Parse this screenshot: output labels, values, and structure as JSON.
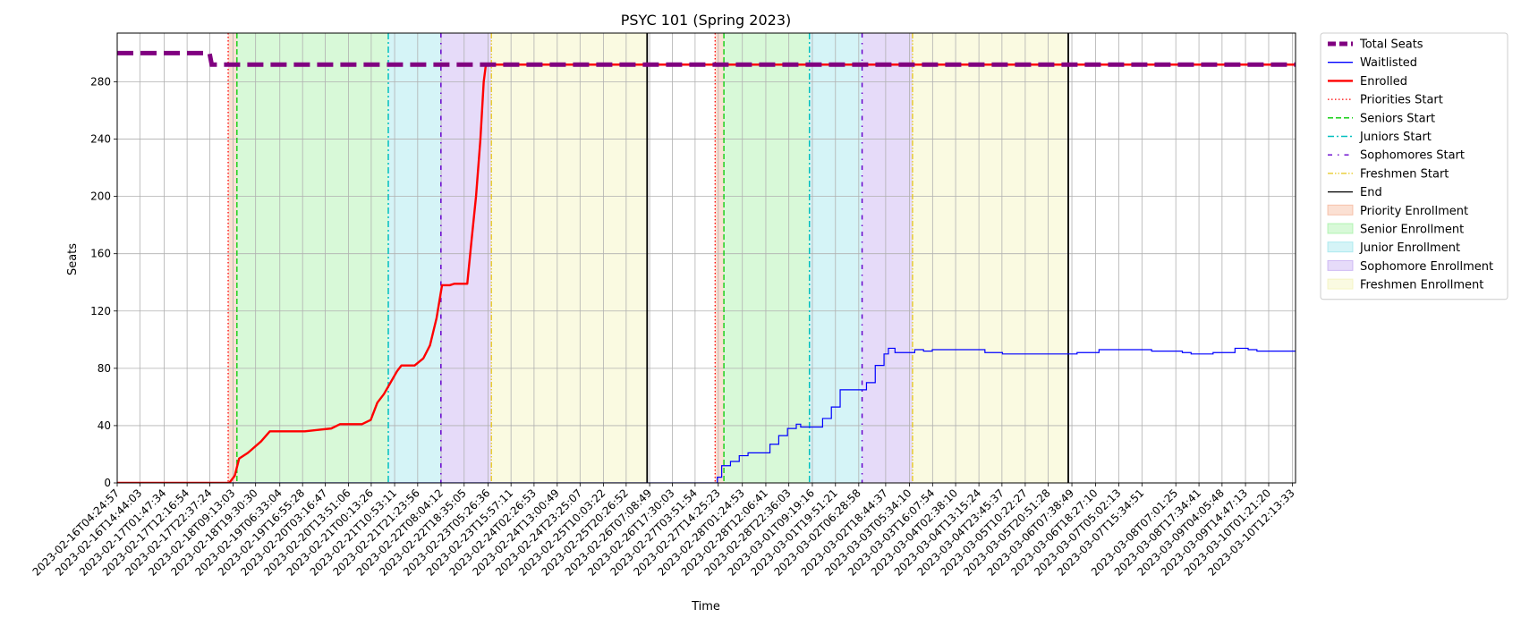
{
  "chart_data": {
    "type": "line",
    "title": "PSYC 101 (Spring 2023)",
    "xlabel": "Time",
    "ylabel": "Seats",
    "x_start": "2023-02-16T04:24:57",
    "x_end": "2023-03-10T13:36:00",
    "ylim": [
      0,
      314
    ],
    "yticks": [
      0,
      40,
      80,
      120,
      160,
      200,
      240,
      280
    ],
    "grid": true,
    "legend_position": "outside-right",
    "xtick_labels": [
      "2023-02-16T04:24:57",
      "2023-02-16T14:44:03",
      "2023-02-17T01:47:34",
      "2023-02-17T12:16:54",
      "2023-02-17T22:37:24",
      "2023-02-18T09:13:03",
      "2023-02-18T19:30:30",
      "2023-02-19T06:33:04",
      "2023-02-19T16:55:28",
      "2023-02-20T03:16:47",
      "2023-02-20T13:51:06",
      "2023-02-21T00:13:26",
      "2023-02-21T10:53:11",
      "2023-02-21T21:23:56",
      "2023-02-22T08:04:12",
      "2023-02-22T18:35:05",
      "2023-02-23T05:26:36",
      "2023-02-23T15:57:11",
      "2023-02-24T02:26:53",
      "2023-02-24T13:00:49",
      "2023-02-24T23:25:07",
      "2023-02-25T10:03:22",
      "2023-02-25T20:26:52",
      "2023-02-26T07:08:49",
      "2023-02-26T17:30:03",
      "2023-02-27T03:51:54",
      "2023-02-27T14:25:23",
      "2023-02-28T01:24:53",
      "2023-02-28T12:06:41",
      "2023-02-28T22:36:03",
      "2023-03-01T09:19:16",
      "2023-03-01T19:51:21",
      "2023-03-02T06:28:58",
      "2023-03-02T18:44:37",
      "2023-03-03T05:34:10",
      "2023-03-03T16:07:54",
      "2023-03-04T02:38:10",
      "2023-03-04T13:15:24",
      "2023-03-04T23:45:37",
      "2023-03-05T10:22:27",
      "2023-03-05T20:51:28",
      "2023-03-06T07:38:49",
      "2023-03-06T18:27:10",
      "2023-03-07T05:02:13",
      "2023-03-07T15:34:51",
      "2023-03-08T07:01:25",
      "2023-03-08T17:34:41",
      "2023-03-09T04:05:48",
      "2023-03-09T14:47:13",
      "2023-03-10T01:21:20",
      "2023-03-10T12:13:33"
    ],
    "colors": {
      "total_seats": "#800080",
      "waitlisted": "#0000ff",
      "enrolled": "#ff0000",
      "priority_line": "#ff0000",
      "seniors_line": "#00cc00",
      "juniors_line": "#00bfbf",
      "sophomores_line": "#6600cc",
      "freshmen_line": "#e6c619",
      "end_line": "#000000",
      "priority_fill": "#f4a582",
      "senior_fill": "#90ee90",
      "junior_fill": "#87dfe8",
      "sophomore_fill": "#b799ee",
      "freshmen_fill": "#f0f0a8"
    },
    "legend": [
      {
        "key": "total_seats",
        "label": "Total Seats",
        "style": "thick-dashed"
      },
      {
        "key": "waitlisted",
        "label": "Waitlisted",
        "style": "line"
      },
      {
        "key": "enrolled",
        "label": "Enrolled",
        "style": "thick-line"
      },
      {
        "key": "priority_line",
        "label": "Priorities Start",
        "style": "dotted"
      },
      {
        "key": "seniors_line",
        "label": "Seniors Start",
        "style": "dashed"
      },
      {
        "key": "juniors_line",
        "label": "Juniors Start",
        "style": "dashdot"
      },
      {
        "key": "sophomores_line",
        "label": "Sophomores Start",
        "style": "loose-dashdot"
      },
      {
        "key": "freshmen_line",
        "label": "Freshmen Start",
        "style": "dashdotdot"
      },
      {
        "key": "end_line",
        "label": "End",
        "style": "line"
      },
      {
        "key": "priority_fill",
        "label": "Priority Enrollment",
        "style": "patch"
      },
      {
        "key": "senior_fill",
        "label": "Senior Enrollment",
        "style": "patch"
      },
      {
        "key": "junior_fill",
        "label": "Junior Enrollment",
        "style": "patch"
      },
      {
        "key": "sophomore_fill",
        "label": "Sophomore Enrollment",
        "style": "patch"
      },
      {
        "key": "freshmen_fill",
        "label": "Freshmen Enrollment",
        "style": "patch"
      }
    ],
    "periods": [
      {
        "priorities_start": "2023-02-18T07:00:00",
        "seniors_start": "2023-02-18T11:00:00",
        "juniors_start": "2023-02-21T08:00:00",
        "sophomores_start": "2023-02-22T08:00:00",
        "freshmen_start": "2023-02-23T07:00:00",
        "end": "2023-02-26T06:00:00"
      },
      {
        "priorities_start": "2023-02-27T13:00:00",
        "seniors_start": "2023-02-27T17:00:00",
        "juniors_start": "2023-03-01T08:00:00",
        "sophomores_start": "2023-03-02T08:00:00",
        "freshmen_start": "2023-03-03T07:00:00",
        "end": "2023-03-06T06:00:00"
      }
    ],
    "series": [
      {
        "key": "total_seats",
        "name": "Total Seats",
        "step": true,
        "points": [
          [
            "2023-02-16T04:24:57",
            300
          ],
          [
            "2023-02-17T22:30:00",
            300
          ],
          [
            "2023-02-17T23:30:00",
            292
          ],
          [
            "2023-03-10T13:36:00",
            292
          ]
        ]
      },
      {
        "key": "enrolled",
        "name": "Enrolled",
        "step": false,
        "points": [
          [
            "2023-02-16T04:24:57",
            0
          ],
          [
            "2023-02-18T07:30:00",
            0
          ],
          [
            "2023-02-18T10:00:00",
            5
          ],
          [
            "2023-02-18T12:00:00",
            17
          ],
          [
            "2023-02-18T16:00:00",
            21
          ],
          [
            "2023-02-18T22:00:00",
            29
          ],
          [
            "2023-02-19T02:00:00",
            36
          ],
          [
            "2023-02-19T18:00:00",
            36
          ],
          [
            "2023-02-20T00:00:00",
            37
          ],
          [
            "2023-02-20T06:00:00",
            38
          ],
          [
            "2023-02-20T10:00:00",
            41
          ],
          [
            "2023-02-20T20:00:00",
            41
          ],
          [
            "2023-02-21T00:00:00",
            44
          ],
          [
            "2023-02-21T03:00:00",
            56
          ],
          [
            "2023-02-21T06:00:00",
            62
          ],
          [
            "2023-02-21T09:00:00",
            70
          ],
          [
            "2023-02-21T12:00:00",
            78
          ],
          [
            "2023-02-21T14:00:00",
            82
          ],
          [
            "2023-02-21T20:00:00",
            82
          ],
          [
            "2023-02-22T00:00:00",
            87
          ],
          [
            "2023-02-22T03:00:00",
            96
          ],
          [
            "2023-02-22T06:00:00",
            115
          ],
          [
            "2023-02-22T08:30:00",
            138
          ],
          [
            "2023-02-22T12:00:00",
            138
          ],
          [
            "2023-02-22T14:00:00",
            139
          ],
          [
            "2023-02-22T20:00:00",
            139
          ],
          [
            "2023-02-22T22:00:00",
            170
          ],
          [
            "2023-02-23T00:00:00",
            200
          ],
          [
            "2023-02-23T02:00:00",
            240
          ],
          [
            "2023-02-23T03:30:00",
            280
          ],
          [
            "2023-02-23T04:30:00",
            292
          ],
          [
            "2023-03-10T13:36:00",
            292
          ]
        ]
      },
      {
        "key": "waitlisted",
        "name": "Waitlisted",
        "step": true,
        "points": [
          [
            "2023-02-16T04:24:57",
            0
          ],
          [
            "2023-02-27T12:00:00",
            0
          ],
          [
            "2023-02-27T14:00:00",
            4
          ],
          [
            "2023-02-27T16:00:00",
            12
          ],
          [
            "2023-02-27T20:00:00",
            15
          ],
          [
            "2023-02-28T00:00:00",
            19
          ],
          [
            "2023-02-28T04:00:00",
            21
          ],
          [
            "2023-02-28T10:00:00",
            21
          ],
          [
            "2023-02-28T14:00:00",
            27
          ],
          [
            "2023-02-28T18:00:00",
            33
          ],
          [
            "2023-02-28T22:00:00",
            38
          ],
          [
            "2023-03-01T02:00:00",
            41
          ],
          [
            "2023-03-01T04:00:00",
            39
          ],
          [
            "2023-03-01T12:00:00",
            39
          ],
          [
            "2023-03-01T14:00:00",
            45
          ],
          [
            "2023-03-01T18:00:00",
            53
          ],
          [
            "2023-03-01T22:00:00",
            65
          ],
          [
            "2023-03-02T06:00:00",
            65
          ],
          [
            "2023-03-02T10:00:00",
            70
          ],
          [
            "2023-03-02T14:00:00",
            82
          ],
          [
            "2023-03-02T18:00:00",
            90
          ],
          [
            "2023-03-02T20:00:00",
            94
          ],
          [
            "2023-03-02T23:00:00",
            91
          ],
          [
            "2023-03-03T05:00:00",
            91
          ],
          [
            "2023-03-03T08:00:00",
            93
          ],
          [
            "2023-03-03T12:00:00",
            92
          ],
          [
            "2023-03-03T16:00:00",
            93
          ],
          [
            "2023-03-04T12:00:00",
            93
          ],
          [
            "2023-03-04T16:00:00",
            91
          ],
          [
            "2023-03-05T00:00:00",
            90
          ],
          [
            "2023-03-06T06:00:00",
            90
          ],
          [
            "2023-03-06T10:00:00",
            91
          ],
          [
            "2023-03-06T20:00:00",
            93
          ],
          [
            "2023-03-07T16:00:00",
            93
          ],
          [
            "2023-03-07T20:00:00",
            92
          ],
          [
            "2023-03-08T10:00:00",
            91
          ],
          [
            "2023-03-08T14:00:00",
            90
          ],
          [
            "2023-03-09T00:00:00",
            91
          ],
          [
            "2023-03-09T10:00:00",
            94
          ],
          [
            "2023-03-09T16:00:00",
            93
          ],
          [
            "2023-03-09T20:00:00",
            92
          ],
          [
            "2023-03-10T13:36:00",
            92
          ]
        ]
      }
    ]
  }
}
